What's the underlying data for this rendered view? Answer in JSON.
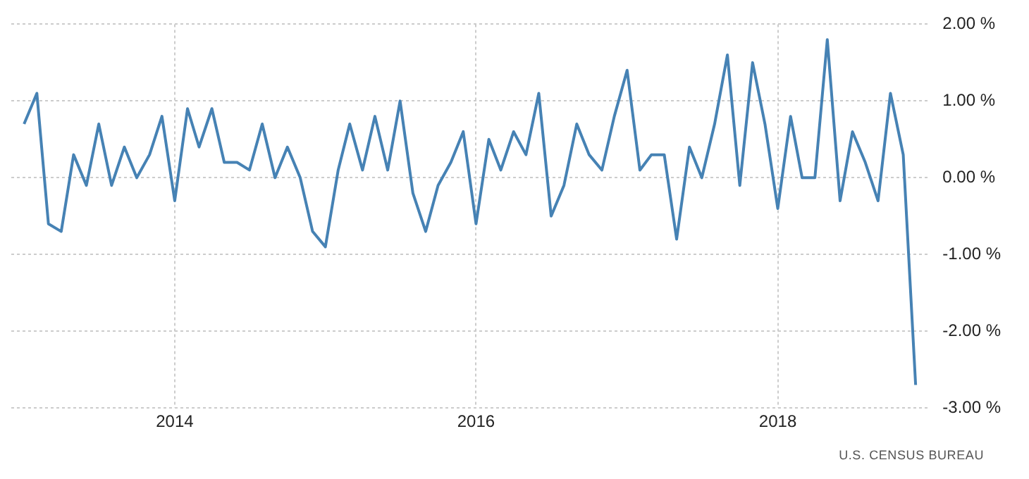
{
  "chart_data": {
    "type": "line",
    "x": [
      "2013-01",
      "2013-02",
      "2013-03",
      "2013-04",
      "2013-05",
      "2013-06",
      "2013-07",
      "2013-08",
      "2013-09",
      "2013-10",
      "2013-11",
      "2013-12",
      "2014-01",
      "2014-02",
      "2014-03",
      "2014-04",
      "2014-05",
      "2014-06",
      "2014-07",
      "2014-08",
      "2014-09",
      "2014-10",
      "2014-11",
      "2014-12",
      "2015-01",
      "2015-02",
      "2015-03",
      "2015-04",
      "2015-05",
      "2015-06",
      "2015-07",
      "2015-08",
      "2015-09",
      "2015-10",
      "2015-11",
      "2015-12",
      "2016-01",
      "2016-02",
      "2016-03",
      "2016-04",
      "2016-05",
      "2016-06",
      "2016-07",
      "2016-08",
      "2016-09",
      "2016-10",
      "2016-11",
      "2016-12",
      "2017-01",
      "2017-02",
      "2017-03",
      "2017-04",
      "2017-05",
      "2017-06",
      "2017-07",
      "2017-08",
      "2017-09",
      "2017-10",
      "2017-11",
      "2017-12",
      "2018-01",
      "2018-02",
      "2018-03",
      "2018-04",
      "2018-05",
      "2018-06",
      "2018-07",
      "2018-08",
      "2018-09",
      "2018-10",
      "2018-11",
      "2018-12"
    ],
    "series": [
      {
        "color": "#4682b4",
        "values": [
          0.7,
          1.1,
          -0.6,
          -0.7,
          0.3,
          -0.1,
          0.7,
          -0.1,
          0.4,
          0.0,
          0.3,
          0.8,
          -0.3,
          0.9,
          0.4,
          0.9,
          0.2,
          0.2,
          0.1,
          0.7,
          0.0,
          0.4,
          0.0,
          -0.7,
          -0.9,
          0.1,
          0.7,
          0.1,
          0.8,
          0.1,
          1.0,
          -0.2,
          -0.7,
          -0.1,
          0.2,
          0.6,
          -0.6,
          0.5,
          0.1,
          0.6,
          0.3,
          1.1,
          -0.5,
          -0.1,
          0.7,
          0.3,
          0.1,
          0.8,
          1.4,
          0.1,
          0.3,
          0.3,
          -0.8,
          0.4,
          0.0,
          0.7,
          1.6,
          -0.1,
          1.5,
          0.7,
          -0.4,
          0.8,
          0.0,
          0.0,
          1.8,
          -0.3,
          0.6,
          0.2,
          -0.3,
          1.1,
          0.3,
          -2.7
        ]
      }
    ],
    "xlim": [
      "2012-12",
      "2019-01"
    ],
    "xticks": [
      {
        "value": "2014-01",
        "label": "2014"
      },
      {
        "value": "2016-01",
        "label": "2016"
      },
      {
        "value": "2018-01",
        "label": "2018"
      }
    ],
    "ylim": [
      -3,
      2
    ],
    "yticks": [
      {
        "value": -3,
        "label": "-3.00 %"
      },
      {
        "value": -2,
        "label": "-2.00 %"
      },
      {
        "value": -1,
        "label": "-1.00 %"
      },
      {
        "value": 0,
        "label": "0.00 %"
      },
      {
        "value": 1,
        "label": "1.00 %"
      },
      {
        "value": 2,
        "label": "2.00 %"
      }
    ],
    "grid": true,
    "legend": false,
    "marker": "none",
    "line_style": "solid",
    "annotations": [
      "U.S. CENSUS BUREAU"
    ]
  }
}
